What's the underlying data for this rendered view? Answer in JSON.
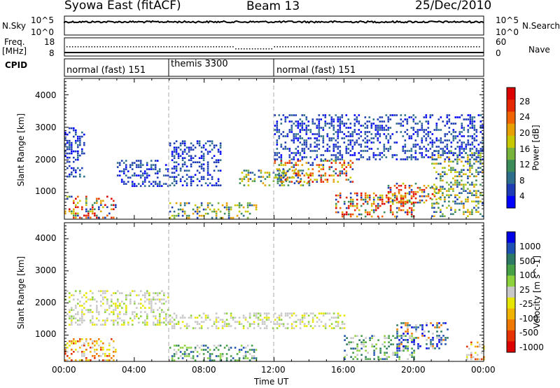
{
  "header": {
    "station": "Syowa East (fitACF)",
    "beam": "Beam 13",
    "date": "25/Dec/2010"
  },
  "top_panels": {
    "nsky_label": "N.Sky",
    "nsky_ticks": [
      "10^5",
      "10^0"
    ],
    "nsearch_label": "N.Search",
    "nsearch_ticks": [
      "10^5",
      "10^0"
    ],
    "freq_label_1": "Freq.",
    "freq_label_2": "[MHz]",
    "freq_ticks": [
      "18",
      "8"
    ],
    "nave_label": "Nave",
    "nave_ticks": [
      "60",
      "0"
    ],
    "cpid_label": "CPID",
    "cpid_segments": [
      {
        "label": "normal (fast) 151",
        "start_hour": 0,
        "end_hour": 6
      },
      {
        "label": "themis 3300",
        "start_hour": 6,
        "end_hour": 12
      },
      {
        "label": "normal (fast) 151",
        "start_hour": 12,
        "end_hour": 24
      }
    ]
  },
  "x_axis": {
    "label": "Time UT",
    "ticks": [
      "00:00",
      "04:00",
      "08:00",
      "12:00",
      "16:00",
      "20:00",
      "00:00"
    ]
  },
  "panels": [
    {
      "id": "power",
      "ylabel": "Slant Range [km]",
      "yticks": [
        "4000",
        "3000",
        "2000",
        "1000"
      ],
      "colorbar_label": "Power [dB]",
      "colorbar_ticks": [
        "28",
        "24",
        "20",
        "16",
        "12",
        "8",
        "4"
      ]
    },
    {
      "id": "velocity",
      "ylabel": "Slant Range [km]",
      "yticks": [
        "4000",
        "3000",
        "2000",
        "1000"
      ],
      "colorbar_label": "Velocity [m s^-1]",
      "colorbar_ticks": [
        "1000",
        "500",
        "100",
        "25",
        "-25",
        "-100",
        "-500",
        "-1000"
      ]
    }
  ],
  "colors": {
    "power_scale": [
      "#0000ff",
      "#1e3cb4",
      "#2d6e8c",
      "#3c8c5a",
      "#78b43c",
      "#c8c800",
      "#e6a000",
      "#f06400",
      "#e62800",
      "#dc0000"
    ],
    "velocity_scale": [
      "#0000e6",
      "#1e50b4",
      "#2d7a64",
      "#46a046",
      "#8cd23c",
      "#c8c8c8",
      "#e6e600",
      "#f0b400",
      "#f07800",
      "#e63200",
      "#dc0000"
    ]
  },
  "chart_data": [
    {
      "type": "heatmap",
      "title": "Syowa East (fitACF) Beam 13 25/Dec/2010",
      "xlabel": "Time UT",
      "ylabel": "Slant Range [km]",
      "xlim": [
        0,
        24
      ],
      "ylim": [
        180,
        4500
      ],
      "quantity": "Power [dB]",
      "color_range": [
        2,
        30
      ],
      "echo_regions": [
        {
          "t_start": 0.0,
          "t_end": 3.0,
          "r_min": 200,
          "r_max": 900,
          "level": "high"
        },
        {
          "t_start": 0.0,
          "t_end": 1.2,
          "r_min": 1500,
          "r_max": 3000,
          "level": "low"
        },
        {
          "t_start": 3.0,
          "t_end": 6.0,
          "r_min": 1200,
          "r_max": 2000,
          "level": "low"
        },
        {
          "t_start": 6.0,
          "t_end": 9.0,
          "r_min": 1200,
          "r_max": 2600,
          "level": "low"
        },
        {
          "t_start": 6.0,
          "t_end": 11.0,
          "r_min": 200,
          "r_max": 700,
          "level": "medium"
        },
        {
          "t_start": 10.0,
          "t_end": 14.0,
          "r_min": 1200,
          "r_max": 1700,
          "level": "medium"
        },
        {
          "t_start": 12.0,
          "t_end": 16.5,
          "r_min": 1300,
          "r_max": 2000,
          "level": "high"
        },
        {
          "t_start": 15.5,
          "t_end": 20.0,
          "r_min": 250,
          "r_max": 1000,
          "level": "high"
        },
        {
          "t_start": 18.5,
          "t_end": 21.5,
          "r_min": 700,
          "r_max": 1300,
          "level": "high"
        },
        {
          "t_start": 21.0,
          "t_end": 24.0,
          "r_min": 300,
          "r_max": 2300,
          "level": "medium"
        },
        {
          "t_start": 12.0,
          "t_end": 24.0,
          "r_min": 2000,
          "r_max": 3400,
          "level": "low"
        }
      ]
    },
    {
      "type": "heatmap",
      "title": "",
      "xlabel": "Time UT",
      "ylabel": "Slant Range [km]",
      "xlim": [
        0,
        24
      ],
      "ylim": [
        180,
        4500
      ],
      "quantity": "Velocity [m s^-1]",
      "color_range": [
        -1000,
        1000
      ],
      "echo_regions": [
        {
          "t_start": 0.0,
          "t_end": 3.0,
          "r_min": 200,
          "r_max": 900,
          "level": "negative"
        },
        {
          "t_start": 0.0,
          "t_end": 6.0,
          "r_min": 1300,
          "r_max": 2400,
          "level": "near-zero"
        },
        {
          "t_start": 6.0,
          "t_end": 16.0,
          "r_min": 1200,
          "r_max": 1700,
          "level": "near-zero"
        },
        {
          "t_start": 6.0,
          "t_end": 11.0,
          "r_min": 200,
          "r_max": 700,
          "level": "positive"
        },
        {
          "t_start": 16.0,
          "t_end": 20.0,
          "r_min": 250,
          "r_max": 1000,
          "level": "positive"
        },
        {
          "t_start": 19.0,
          "t_end": 22.0,
          "r_min": 600,
          "r_max": 1400,
          "level": "mixed"
        },
        {
          "t_start": 23.0,
          "t_end": 24.0,
          "r_min": 250,
          "r_max": 800,
          "level": "negative"
        }
      ]
    }
  ]
}
